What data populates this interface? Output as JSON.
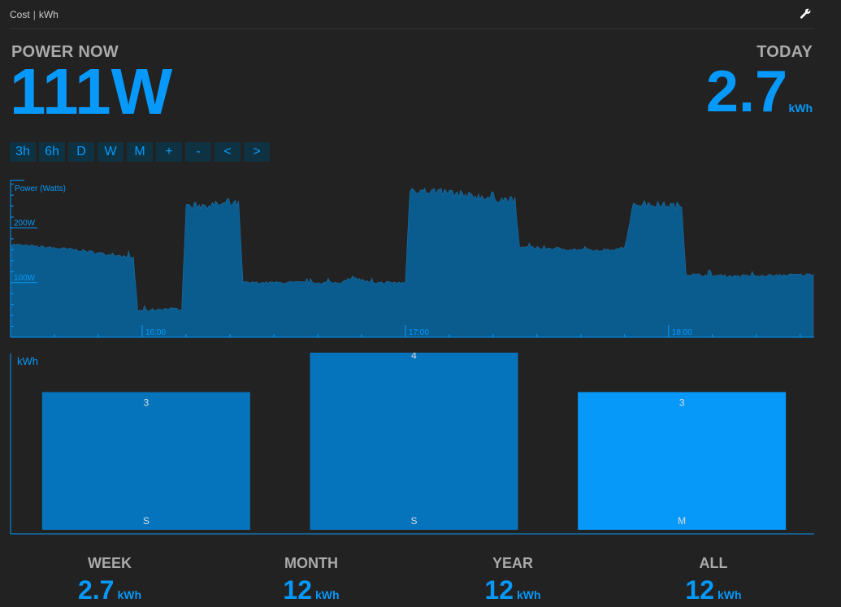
{
  "topbar": {
    "link_cost": "Cost",
    "separator": "|",
    "link_kwh": "kWh",
    "settings_icon": "wrench-icon"
  },
  "power_now": {
    "label": "POWER NOW",
    "value": "111W"
  },
  "today": {
    "label": "TODAY",
    "value": "2.7",
    "unit": "kWh"
  },
  "buttons": [
    "3h",
    "6h",
    "D",
    "W",
    "M",
    "+",
    "-",
    "<",
    ">"
  ],
  "colors": {
    "accent": "#0699fa",
    "graph_fill": "#0a5c8f",
    "bar_past": "#0674bd",
    "bar_today": "#0699fa",
    "background": "#222222"
  },
  "chart_data": [
    {
      "type": "area",
      "title": "",
      "ylabel": "Power (Watts)",
      "y_tick_labels": [
        "100W",
        "200W"
      ],
      "x_tick_labels": [
        "16:00",
        "17:00",
        "18:00"
      ],
      "x_range": [
        "15:30",
        "18:33"
      ],
      "ylim": [
        0,
        290
      ],
      "x": [
        "15:30",
        "15:45",
        "15:58",
        "15:59",
        "16:05",
        "16:09",
        "16:10",
        "16:22",
        "16:23",
        "16:35",
        "16:45",
        "16:48",
        "16:52",
        "17:00",
        "17:01",
        "17:10",
        "17:20",
        "17:25",
        "17:26",
        "17:35",
        "17:45",
        "17:50",
        "17:52",
        "18:03",
        "18:04",
        "18:15",
        "18:33"
      ],
      "values": [
        170,
        160,
        145,
        48,
        52,
        52,
        240,
        245,
        100,
        100,
        100,
        110,
        100,
        100,
        270,
        265,
        255,
        250,
        165,
        162,
        158,
        165,
        245,
        240,
        115,
        112,
        115
      ]
    },
    {
      "type": "bar",
      "title": "",
      "ylabel": "kWh",
      "categories": [
        "S",
        "S",
        "M"
      ],
      "values": [
        3,
        4,
        3
      ],
      "data_labels": [
        "3",
        "4",
        "3"
      ],
      "ylim": [
        0,
        3.8
      ]
    }
  ],
  "stats": [
    {
      "label": "WEEK",
      "value": "2.7",
      "unit": "kWh"
    },
    {
      "label": "MONTH",
      "value": "12",
      "unit": "kWh"
    },
    {
      "label": "YEAR",
      "value": "12",
      "unit": "kWh"
    },
    {
      "label": "ALL",
      "value": "12",
      "unit": "kWh"
    }
  ]
}
